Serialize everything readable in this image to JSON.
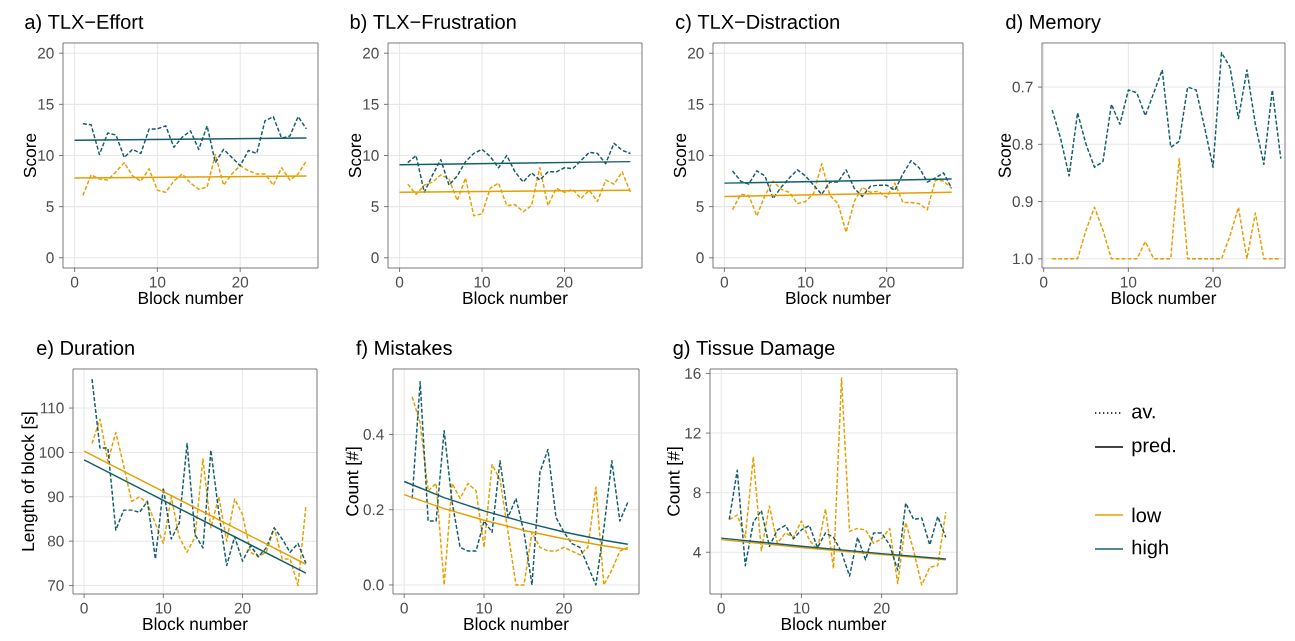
{
  "chart_data": [
    {
      "type": "line",
      "title": "a) TLX−Effort",
      "xlabel": "Block number",
      "ylabel": "Score",
      "xlim": [
        -1.4,
        29.4
      ],
      "ylim": [
        -1,
        21
      ],
      "xticks": [
        0,
        10,
        20
      ],
      "yticks": [
        0,
        5,
        10,
        15,
        20
      ],
      "grid": true,
      "series": [
        {
          "color": "#e69f00",
          "line_style": "dashed",
          "x": [
            1,
            2,
            3,
            4,
            5,
            6,
            7,
            8,
            9,
            10,
            11,
            12,
            13,
            14,
            15,
            16,
            17,
            18,
            19,
            20,
            21,
            22,
            23,
            24,
            25,
            26,
            27,
            28
          ],
          "values": [
            6.1,
            8.1,
            7.7,
            7.6,
            8.4,
            9.3,
            8.0,
            7.5,
            8.7,
            6.6,
            6.4,
            7.5,
            8.2,
            7.3,
            6.7,
            6.9,
            10.1,
            7.1,
            8.2,
            9.0,
            8.5,
            8.2,
            8.2,
            7.1,
            8.8,
            7.6,
            8.2,
            9.5
          ]
        },
        {
          "color": "#135e6a",
          "line_style": "dashed",
          "x": [
            1,
            2,
            3,
            4,
            5,
            6,
            7,
            8,
            9,
            10,
            11,
            12,
            13,
            14,
            15,
            16,
            17,
            18,
            19,
            20,
            21,
            22,
            23,
            24,
            25,
            26,
            27,
            28
          ],
          "values": [
            13.1,
            13.0,
            10.1,
            12.2,
            12.0,
            9.8,
            10.6,
            10.2,
            12.6,
            12.6,
            12.9,
            10.8,
            11.8,
            12.4,
            10.6,
            12.9,
            9.3,
            10.6,
            9.8,
            9.0,
            10.5,
            10.2,
            13.4,
            13.8,
            11.7,
            11.9,
            13.8,
            12.6
          ]
        },
        {
          "color": "#e69f00",
          "line_style": "solid",
          "x": [
            0,
            28
          ],
          "values": [
            7.8,
            8.0
          ]
        },
        {
          "color": "#135e6a",
          "line_style": "solid",
          "x": [
            0,
            28
          ],
          "values": [
            11.5,
            11.7
          ]
        }
      ]
    },
    {
      "type": "line",
      "title": "b) TLX−Frustration",
      "xlabel": "Block number",
      "ylabel": "Score",
      "xlim": [
        -1.4,
        29.4
      ],
      "ylim": [
        -1,
        21
      ],
      "xticks": [
        0,
        10,
        20
      ],
      "yticks": [
        0,
        5,
        10,
        15,
        20
      ],
      "grid": true,
      "series": [
        {
          "color": "#e69f00",
          "line_style": "dashed",
          "x": [
            1,
            2,
            3,
            4,
            5,
            6,
            7,
            8,
            9,
            10,
            11,
            12,
            13,
            14,
            15,
            16,
            17,
            18,
            19,
            20,
            21,
            22,
            23,
            24,
            25,
            26,
            27,
            28
          ],
          "values": [
            7.2,
            6.2,
            7.1,
            7.4,
            8.1,
            7.7,
            5.6,
            7.8,
            4.1,
            4.3,
            6.8,
            7.3,
            5.1,
            5.2,
            4.5,
            5.1,
            8.8,
            5.1,
            6.8,
            6.4,
            6.7,
            5.8,
            6.6,
            5.5,
            7.6,
            7.2,
            8.4,
            6.4
          ]
        },
        {
          "color": "#135e6a",
          "line_style": "dashed",
          "x": [
            1,
            2,
            3,
            4,
            5,
            6,
            7,
            8,
            9,
            10,
            11,
            12,
            13,
            14,
            15,
            16,
            17,
            18,
            19,
            20,
            21,
            22,
            23,
            24,
            25,
            26,
            27,
            28
          ],
          "values": [
            9.3,
            10.0,
            6.4,
            8.1,
            9.6,
            7.1,
            8.0,
            9.4,
            10.2,
            10.6,
            9.9,
            8.8,
            10.0,
            8.4,
            7.4,
            8.3,
            7.6,
            8.4,
            8.4,
            8.8,
            8.7,
            9.5,
            10.3,
            10.2,
            9.2,
            11.2,
            10.5,
            10.2
          ]
        },
        {
          "color": "#e69f00",
          "line_style": "solid",
          "x": [
            0,
            28
          ],
          "values": [
            6.4,
            6.6
          ]
        },
        {
          "color": "#135e6a",
          "line_style": "solid",
          "x": [
            0,
            28
          ],
          "values": [
            9.1,
            9.4
          ]
        }
      ]
    },
    {
      "type": "line",
      "title": "c) TLX−Distraction",
      "xlabel": "Block number",
      "ylabel": "Score",
      "xlim": [
        -1.4,
        29.4
      ],
      "ylim": [
        -1,
        21
      ],
      "xticks": [
        0,
        10,
        20
      ],
      "yticks": [
        0,
        5,
        10,
        15,
        20
      ],
      "grid": true,
      "series": [
        {
          "color": "#e69f00",
          "line_style": "dashed",
          "x": [
            1,
            2,
            3,
            4,
            5,
            6,
            7,
            8,
            9,
            10,
            11,
            12,
            13,
            14,
            15,
            16,
            17,
            18,
            19,
            20,
            21,
            22,
            23,
            24,
            25,
            26,
            27,
            28
          ],
          "values": [
            4.7,
            6.2,
            6.1,
            4.1,
            6.1,
            7.5,
            6.7,
            6.4,
            5.3,
            5.5,
            6.3,
            9.2,
            6.1,
            5.3,
            2.5,
            5.5,
            6.9,
            6.4,
            6.5,
            5.9,
            7.3,
            5.4,
            5.4,
            5.3,
            4.7,
            7.6,
            7.5,
            6.8
          ]
        },
        {
          "color": "#135e6a",
          "line_style": "dashed",
          "x": [
            1,
            2,
            3,
            4,
            5,
            6,
            7,
            8,
            9,
            10,
            11,
            12,
            13,
            14,
            15,
            16,
            17,
            18,
            19,
            20,
            21,
            22,
            23,
            24,
            25,
            26,
            27,
            28
          ],
          "values": [
            8.5,
            7.5,
            7.2,
            8.5,
            8.0,
            5.8,
            6.9,
            7.8,
            8.6,
            8.0,
            7.1,
            6.2,
            7.4,
            7.4,
            8.6,
            6.8,
            6.0,
            7.0,
            7.1,
            7.1,
            6.6,
            8.2,
            9.5,
            8.8,
            7.4,
            7.8,
            8.3,
            6.8
          ]
        },
        {
          "color": "#e69f00",
          "line_style": "solid",
          "x": [
            0,
            28
          ],
          "values": [
            6.0,
            6.4
          ]
        },
        {
          "color": "#135e6a",
          "line_style": "solid",
          "x": [
            0,
            28
          ],
          "values": [
            7.3,
            7.7
          ]
        }
      ]
    },
    {
      "type": "line",
      "title": "d) Memory",
      "xlabel": "Block number",
      "ylabel": "Score",
      "xlim": [
        -0.2,
        28.5
      ],
      "ylim": [
        1.016,
        0.623
      ],
      "xticks": [
        0,
        10,
        20
      ],
      "yticks": [
        0.7,
        0.8,
        0.9,
        {
          "value": 1,
          "label": "1.0"
        }
      ],
      "grid": true,
      "series": [
        {
          "color": "#e69f00",
          "line_style": "dashed",
          "x": [
            1,
            2,
            3,
            4,
            5,
            6,
            7,
            8,
            9,
            10,
            11,
            12,
            13,
            14,
            15,
            16,
            17,
            18,
            19,
            20,
            21,
            22,
            23,
            24,
            25,
            26,
            27,
            28
          ],
          "values": [
            1.0,
            1.0,
            1.0,
            1.0,
            0.95,
            0.91,
            0.95,
            1.0,
            1.0,
            1.0,
            1.0,
            0.97,
            1.0,
            1.0,
            1.0,
            0.825,
            1.0,
            1.0,
            1.0,
            1.0,
            1.0,
            0.96,
            0.91,
            1.0,
            0.92,
            1.0,
            1.0,
            1.0
          ]
        },
        {
          "color": "#135e6a",
          "line_style": "dashed",
          "x": [
            1,
            2,
            3,
            4,
            5,
            6,
            7,
            8,
            9,
            10,
            11,
            12,
            13,
            14,
            15,
            16,
            17,
            18,
            19,
            20,
            21,
            22,
            23,
            24,
            25,
            26,
            27,
            28
          ],
          "values": [
            0.74,
            0.79,
            0.855,
            0.745,
            0.8,
            0.84,
            0.83,
            0.73,
            0.765,
            0.705,
            0.71,
            0.75,
            0.71,
            0.67,
            0.805,
            0.795,
            0.7,
            0.705,
            0.77,
            0.84,
            0.64,
            0.665,
            0.755,
            0.67,
            0.765,
            0.835,
            0.705,
            0.825
          ]
        }
      ]
    },
    {
      "type": "line",
      "title": "e) Duration",
      "xlabel": "Block number",
      "ylabel": "Length of block [s]",
      "xlim": [
        -1.4,
        29.4
      ],
      "ylim": [
        68.1,
        118.8
      ],
      "xticks": [
        0,
        10,
        20
      ],
      "yticks": [
        70,
        80,
        90,
        100,
        110
      ],
      "grid": true,
      "series": [
        {
          "color": "#e69f00",
          "line_style": "dashed",
          "x": [
            1,
            2,
            3,
            4,
            5,
            6,
            7,
            8,
            9,
            10,
            11,
            12,
            13,
            14,
            15,
            16,
            17,
            18,
            19,
            20,
            21,
            22,
            23,
            24,
            25,
            26,
            27,
            28
          ],
          "values": [
            102,
            107.5,
            98,
            104.5,
            97,
            89,
            90,
            88.5,
            84,
            79.5,
            90,
            81,
            77.5,
            81,
            98.5,
            83,
            90,
            80,
            89.5,
            86,
            77.5,
            76.5,
            77.5,
            83,
            76,
            76,
            70,
            88
          ]
        },
        {
          "color": "#135e6a",
          "line_style": "dashed",
          "x": [
            1,
            2,
            3,
            4,
            5,
            6,
            7,
            8,
            9,
            10,
            11,
            12,
            13,
            14,
            15,
            16,
            17,
            18,
            19,
            20,
            21,
            22,
            23,
            24,
            25,
            26,
            27,
            28
          ],
          "values": [
            116.5,
            101,
            101,
            82.5,
            87,
            87,
            86.5,
            89,
            76,
            92,
            80.5,
            84,
            102,
            81.5,
            78.5,
            100.5,
            86.5,
            74.5,
            81,
            75.5,
            79,
            76.5,
            78.5,
            83,
            80.5,
            77.5,
            79.5,
            75
          ]
        },
        {
          "color": "#e69f00",
          "line_style": "solid",
          "x": [
            0,
            28
          ],
          "values": [
            100.3,
            74.8
          ]
        },
        {
          "color": "#135e6a",
          "line_style": "solid",
          "x": [
            0,
            28
          ],
          "values": [
            98.3,
            72.8
          ]
        }
      ]
    },
    {
      "type": "line",
      "title": "f) Mistakes",
      "xlabel": "Block number",
      "ylabel": "Count [#]",
      "xlim": [
        -1.4,
        29.4
      ],
      "ylim": [
        -0.024,
        0.574
      ],
      "xticks": [
        0,
        10,
        20
      ],
      "yticks": [
        {
          "value": 0,
          "label": "0.0"
        },
        0.2,
        0.4
      ],
      "grid": true,
      "series": [
        {
          "color": "#e69f00",
          "line_style": "dashed",
          "x": [
            1,
            2,
            3,
            4,
            5,
            6,
            7,
            8,
            9,
            10,
            11,
            12,
            13,
            14,
            15,
            16,
            17,
            18,
            19,
            20,
            21,
            22,
            23,
            24,
            25,
            26,
            27,
            28
          ],
          "values": [
            0.5,
            0.43,
            0.25,
            0.27,
            0.0,
            0.27,
            0.23,
            0.27,
            0.25,
            0.1,
            0.32,
            0.28,
            0.14,
            0.0,
            0.0,
            0.14,
            0.1,
            0.09,
            0.09,
            0.1,
            0.09,
            0.08,
            0.1,
            0.26,
            0.0,
            0.04,
            0.09,
            0.1
          ]
        },
        {
          "color": "#135e6a",
          "line_style": "dashed",
          "x": [
            1,
            2,
            3,
            4,
            5,
            6,
            7,
            8,
            9,
            10,
            11,
            12,
            13,
            14,
            15,
            16,
            17,
            18,
            19,
            20,
            21,
            22,
            23,
            24,
            25,
            26,
            27,
            28
          ],
          "values": [
            0.23,
            0.54,
            0.17,
            0.17,
            0.41,
            0.22,
            0.1,
            0.09,
            0.09,
            0.17,
            0.14,
            0.33,
            0.18,
            0.23,
            0.14,
            0.0,
            0.3,
            0.36,
            0.18,
            0.14,
            0.11,
            0.1,
            0.05,
            0.0,
            0.15,
            0.33,
            0.17,
            0.22
          ]
        },
        {
          "color": "#e69f00",
          "line_style": "solid",
          "x": [
            0,
            5,
            10,
            15,
            20,
            25,
            28
          ],
          "values": [
            0.24,
            0.203,
            0.172,
            0.145,
            0.123,
            0.104,
            0.094
          ]
        },
        {
          "color": "#135e6a",
          "line_style": "solid",
          "x": [
            0,
            5,
            10,
            15,
            20,
            25,
            28
          ],
          "values": [
            0.275,
            0.232,
            0.197,
            0.167,
            0.141,
            0.119,
            0.108
          ]
        }
      ]
    },
    {
      "type": "line",
      "title": "g) Tissue Damage",
      "xlabel": "Block number",
      "ylabel": "Count [#]",
      "xlim": [
        -1.4,
        29.4
      ],
      "ylim": [
        1.2,
        16.3
      ],
      "xticks": [
        0,
        10,
        20
      ],
      "yticks": [
        4,
        8,
        12,
        16
      ],
      "grid": true,
      "series": [
        {
          "color": "#e69f00",
          "line_style": "dashed",
          "x": [
            1,
            2,
            3,
            4,
            5,
            6,
            7,
            8,
            9,
            10,
            11,
            12,
            13,
            14,
            15,
            16,
            17,
            18,
            19,
            20,
            21,
            22,
            23,
            24,
            25,
            26,
            27,
            28
          ],
          "values": [
            6.2,
            6.5,
            5.0,
            10.4,
            4.1,
            7.1,
            4.6,
            5.3,
            5.0,
            6.1,
            4.8,
            4.2,
            6.9,
            2.9,
            15.7,
            5.4,
            5.6,
            5.5,
            4.6,
            4.9,
            5.6,
            1.9,
            6.0,
            4.1,
            1.8,
            3.0,
            3.1,
            6.7
          ]
        },
        {
          "color": "#135e6a",
          "line_style": "dashed",
          "x": [
            1,
            2,
            3,
            4,
            5,
            6,
            7,
            8,
            9,
            10,
            11,
            12,
            13,
            14,
            15,
            16,
            17,
            18,
            19,
            20,
            21,
            22,
            23,
            24,
            25,
            26,
            27,
            28
          ],
          "values": [
            6.2,
            9.5,
            3.1,
            6.0,
            6.8,
            4.4,
            5.5,
            5.8,
            4.9,
            5.5,
            5.8,
            4.3,
            5.3,
            5.0,
            4.0,
            2.4,
            5.0,
            3.5,
            5.3,
            5.3,
            4.5,
            2.8,
            7.3,
            6.2,
            6.3,
            4.5,
            6.4,
            5.0
          ]
        },
        {
          "color": "#e69f00",
          "line_style": "solid",
          "x": [
            0,
            10,
            20,
            28
          ],
          "values": [
            4.85,
            4.32,
            3.85,
            3.5
          ]
        },
        {
          "color": "#135e6a",
          "line_style": "solid",
          "x": [
            0,
            10,
            20,
            28
          ],
          "values": [
            4.95,
            4.4,
            3.91,
            3.55
          ]
        }
      ]
    },
    {
      "type": "other",
      "series": [
        {
          "name": "av.",
          "color": "#000000",
          "line_style": "dotted"
        },
        {
          "name": "pred.",
          "color": "#000000",
          "line_style": "solid"
        },
        {
          "name": "low",
          "color": "#e69f00",
          "line_style": "solid"
        },
        {
          "name": "high",
          "color": "#135e6a",
          "line_style": "solid"
        }
      ]
    }
  ]
}
